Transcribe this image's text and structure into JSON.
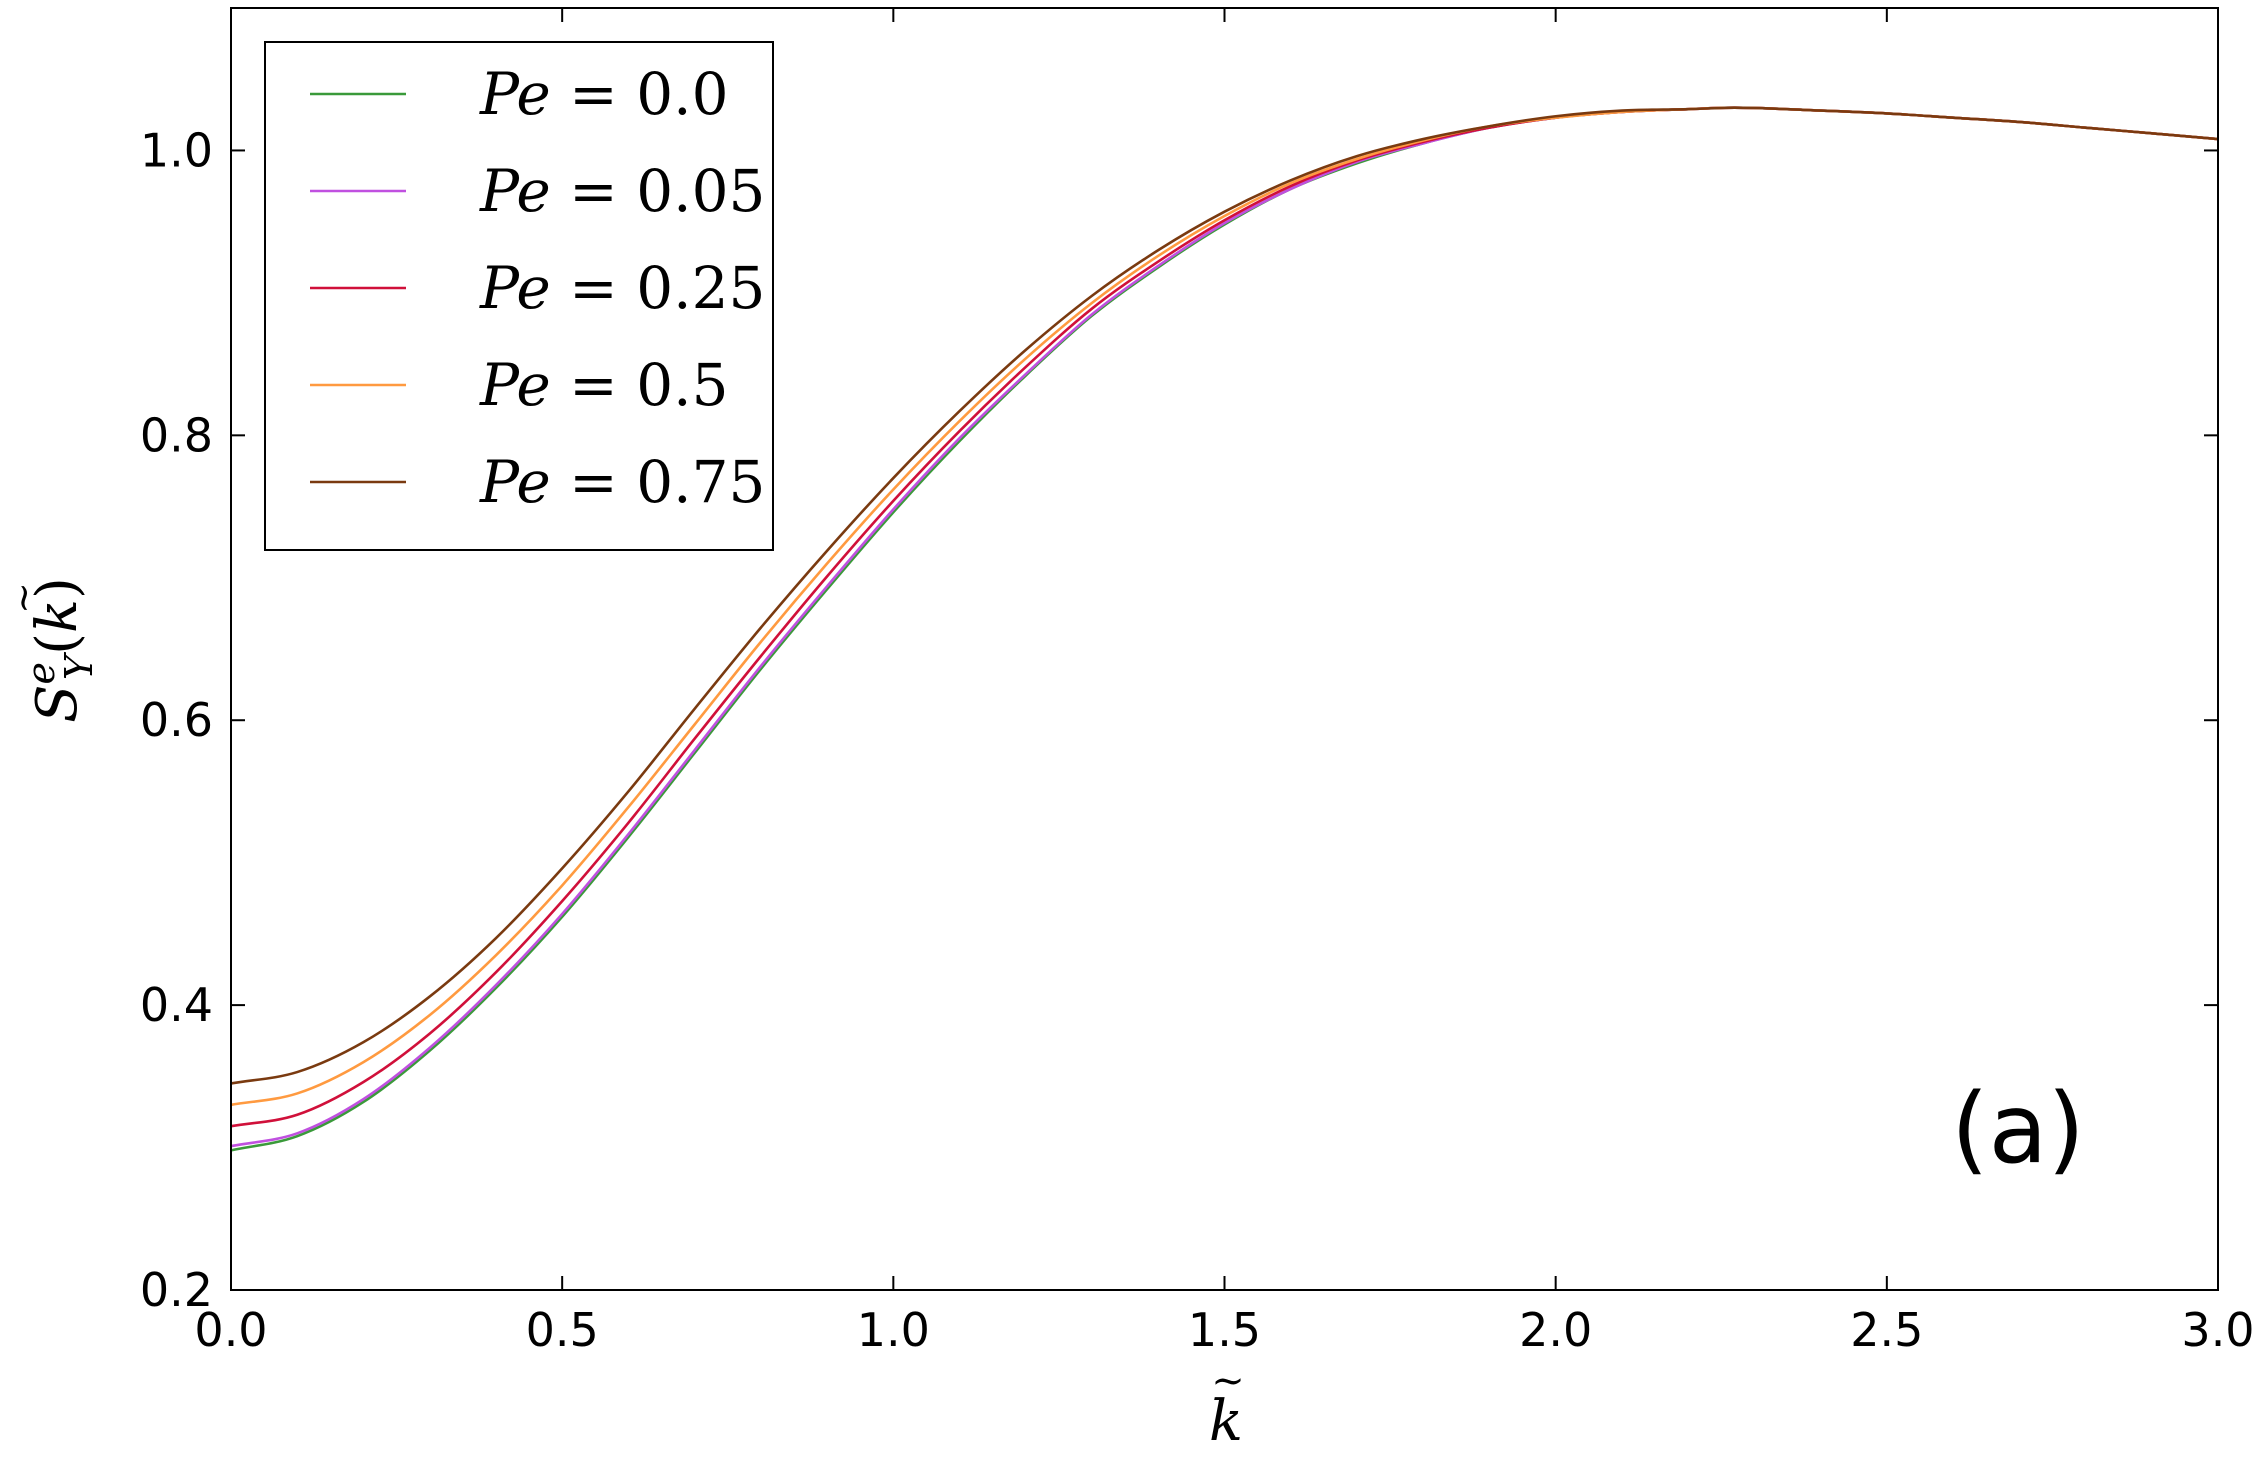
{
  "chart_data": {
    "type": "line",
    "xlabel": "k̃",
    "ylabel": "S_Y^e(k̃)",
    "xlim": [
      0.0,
      3.0
    ],
    "ylim": [
      0.2,
      1.1
    ],
    "xticks": [
      "0.0",
      "0.5",
      "1.0",
      "1.5",
      "2.0",
      "2.5",
      "3.0"
    ],
    "yticks": [
      "0.2",
      "0.4",
      "0.6",
      "0.8",
      "1.0"
    ],
    "legend_placement": "top-left",
    "annotation": "(a)",
    "grid": false,
    "x": [
      0.0,
      0.1,
      0.2,
      0.3,
      0.4,
      0.5,
      0.6,
      0.7,
      0.8,
      0.9,
      1.0,
      1.1,
      1.2,
      1.3,
      1.4,
      1.5,
      1.6,
      1.7,
      1.8,
      1.9,
      2.0,
      2.1,
      2.2,
      2.27,
      2.4,
      2.5,
      2.6,
      2.7,
      2.8,
      2.9,
      3.0
    ],
    "series": [
      {
        "name": "Pe = 0.0",
        "color": "#3a9a3a",
        "values": [
          0.298,
          0.308,
          0.332,
          0.368,
          0.412,
          0.462,
          0.518,
          0.577,
          0.636,
          0.692,
          0.746,
          0.796,
          0.842,
          0.884,
          0.918,
          0.948,
          0.973,
          0.991,
          1.005,
          1.016,
          1.023,
          1.027,
          1.029,
          1.03,
          1.028,
          1.026,
          1.023,
          1.02,
          1.016,
          1.012,
          1.008
        ]
      },
      {
        "name": "Pe = 0.05",
        "color": "#c050e0",
        "values": [
          0.301,
          0.31,
          0.334,
          0.37,
          0.414,
          0.464,
          0.52,
          0.579,
          0.638,
          0.694,
          0.748,
          0.798,
          0.843,
          0.885,
          0.919,
          0.949,
          0.973,
          0.992,
          1.005,
          1.016,
          1.023,
          1.027,
          1.029,
          1.03,
          1.028,
          1.026,
          1.023,
          1.02,
          1.016,
          1.012,
          1.008
        ]
      },
      {
        "name": "Pe = 0.25",
        "color": "#d0103a",
        "values": [
          0.315,
          0.323,
          0.346,
          0.38,
          0.423,
          0.473,
          0.528,
          0.587,
          0.645,
          0.701,
          0.754,
          0.803,
          0.848,
          0.889,
          0.922,
          0.951,
          0.975,
          0.993,
          1.006,
          1.016,
          1.023,
          1.027,
          1.029,
          1.03,
          1.028,
          1.026,
          1.023,
          1.02,
          1.016,
          1.012,
          1.008
        ]
      },
      {
        "name": "Pe = 0.5",
        "color": "#ff9a40",
        "values": [
          0.33,
          0.338,
          0.36,
          0.393,
          0.435,
          0.484,
          0.539,
          0.597,
          0.655,
          0.71,
          0.762,
          0.81,
          0.854,
          0.893,
          0.926,
          0.954,
          0.977,
          0.994,
          1.007,
          1.017,
          1.023,
          1.027,
          1.029,
          1.03,
          1.028,
          1.026,
          1.023,
          1.02,
          1.016,
          1.012,
          1.008
        ]
      },
      {
        "name": "Pe = 0.75",
        "color": "#7a3a10",
        "values": [
          0.345,
          0.353,
          0.374,
          0.406,
          0.447,
          0.496,
          0.55,
          0.608,
          0.665,
          0.719,
          0.77,
          0.817,
          0.86,
          0.898,
          0.93,
          0.957,
          0.979,
          0.996,
          1.008,
          1.017,
          1.024,
          1.028,
          1.029,
          1.03,
          1.028,
          1.026,
          1.023,
          1.02,
          1.016,
          1.012,
          1.008
        ]
      }
    ]
  }
}
